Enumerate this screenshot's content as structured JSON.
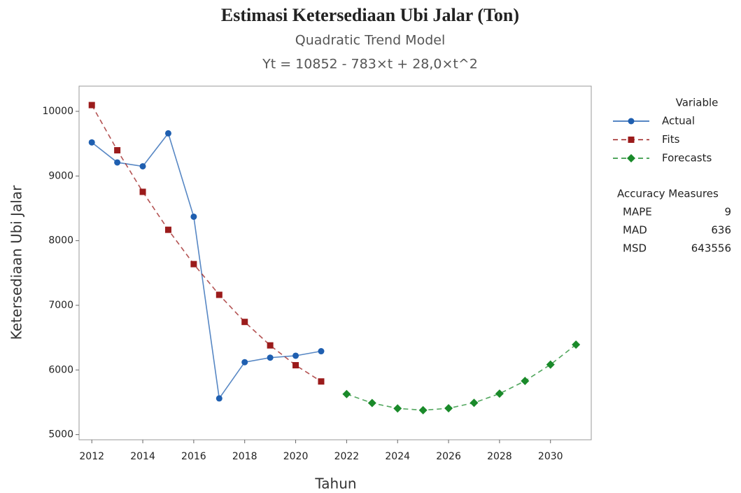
{
  "chart_data": {
    "type": "line",
    "title": "Estimasi Ketersediaan Ubi Jalar (Ton)",
    "subtitle": "Quadratic Trend Model",
    "equation": "Yt = 10852 - 783×t + 28,0×t^2",
    "x_label": "Tahun",
    "y_label": "Ketersediaan Ubi Jalar",
    "x": [
      2012,
      2013,
      2014,
      2015,
      2016,
      2017,
      2018,
      2019,
      2020,
      2021,
      2022,
      2023,
      2024,
      2025,
      2026,
      2027,
      2028,
      2029,
      2030,
      2031
    ],
    "series": [
      {
        "name": "Actual",
        "color": "#1f5fb0",
        "marker": "circle",
        "dashed": false,
        "values": [
          9520,
          9210,
          9150,
          9660,
          8370,
          5560,
          6120,
          6190,
          6220,
          6290,
          null,
          null,
          null,
          null,
          null,
          null,
          null,
          null,
          null,
          null
        ]
      },
      {
        "name": "Fits",
        "color": "#9b1b1b",
        "marker": "square",
        "dashed": true,
        "values": [
          10097,
          9398,
          8755,
          8168,
          7637,
          7162,
          6743,
          6380,
          6073,
          5822,
          null,
          null,
          null,
          null,
          null,
          null,
          null,
          null,
          null,
          null
        ]
      },
      {
        "name": "Forecasts",
        "color": "#1a8a2a",
        "marker": "diamond",
        "dashed": true,
        "values": [
          null,
          null,
          null,
          null,
          null,
          null,
          null,
          null,
          null,
          null,
          5627,
          5488,
          5405,
          5378,
          5407,
          5492,
          5633,
          5830,
          6083,
          6392
        ]
      }
    ],
    "xlim": [
      2011.5,
      2031.6
    ],
    "xticks": [
      2012,
      2014,
      2016,
      2018,
      2020,
      2022,
      2024,
      2026,
      2028,
      2030
    ],
    "ylim": [
      4920,
      10390
    ],
    "yticks": [
      5000,
      6000,
      7000,
      8000,
      9000,
      10000
    ],
    "legend_title": "Variable",
    "accuracy": {
      "title": "Accuracy Measures",
      "rows": [
        {
          "label": "MAPE",
          "value": 9
        },
        {
          "label": "MAD",
          "value": 636
        },
        {
          "label": "MSD",
          "value": 643556
        }
      ]
    }
  }
}
